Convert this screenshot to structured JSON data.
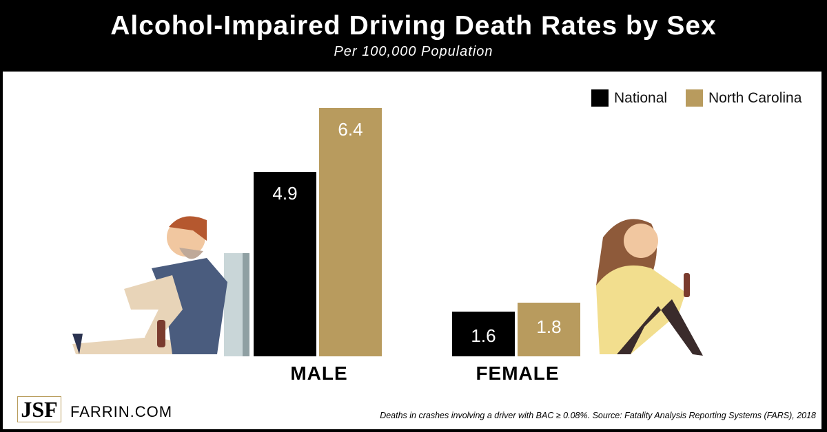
{
  "chart_data": {
    "type": "bar",
    "title": "Alcohol-Impaired Driving Death Rates by Sex",
    "subtitle": "Per 100,000 Population",
    "categories": [
      "MALE",
      "FEMALE"
    ],
    "series": [
      {
        "name": "National",
        "color": "#000000",
        "values": [
          4.9,
          1.6
        ],
        "labels": [
          "4.9",
          "1.6"
        ]
      },
      {
        "name": "North Carolina",
        "color": "#b89b5e",
        "values": [
          6.4,
          1.8
        ],
        "labels": [
          "6.4",
          "1.8"
        ]
      }
    ],
    "legend_placement": "top-right",
    "grid": false
  },
  "footer": {
    "logo": "JSF",
    "site": "FARRIN.COM",
    "source": "Deaths in crashes involving a driver with BAC ≥ 0.08%. Source: Fatality Analysis Reporting Systems (FARS), 2018"
  },
  "icons": [
    "man-drunk-illustration",
    "woman-drunk-illustration"
  ]
}
